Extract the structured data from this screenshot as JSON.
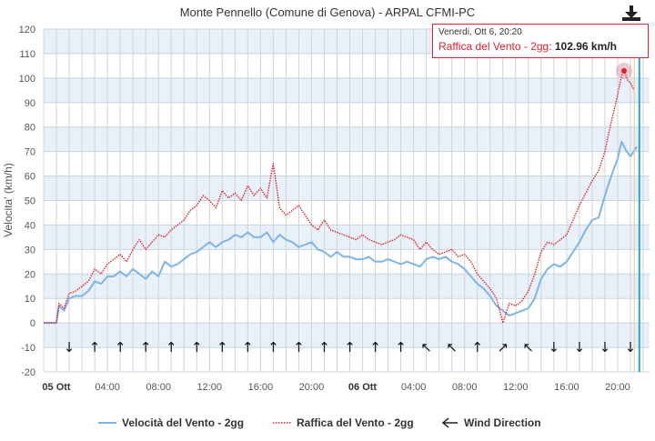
{
  "chart_data": {
    "type": "line",
    "title": "Monte Pennello (Comune di Genova) - ARPAL CFMI-PC",
    "ylabel": "Velocita' (km/h)",
    "xlabel": "",
    "ylim": [
      -20,
      120
    ],
    "yticks": [
      -20,
      -10,
      0,
      10,
      20,
      30,
      40,
      50,
      60,
      70,
      80,
      90,
      100,
      110,
      120
    ],
    "xrange_hours": [
      -1,
      46.5
    ],
    "xtick_labels": [
      {
        "t": 0,
        "label": "05 Ott",
        "bold": true
      },
      {
        "t": 4,
        "label": "04:00"
      },
      {
        "t": 8,
        "label": "08:00"
      },
      {
        "t": 12,
        "label": "12:00"
      },
      {
        "t": 16,
        "label": "16:00"
      },
      {
        "t": 20,
        "label": "20:00"
      },
      {
        "t": 24,
        "label": "06 Ott",
        "bold": true
      },
      {
        "t": 28,
        "label": "04:00"
      },
      {
        "t": 32,
        "label": "08:00"
      },
      {
        "t": 36,
        "label": "12:00"
      },
      {
        "t": 40,
        "label": "16:00"
      },
      {
        "t": 44,
        "label": "20:00"
      }
    ],
    "grid": true,
    "legend_position": "bottom",
    "series": [
      {
        "name": "Velocità del Vento - 2gg",
        "color": "#7cb5ec",
        "style": "solid",
        "points": [
          [
            -1,
            0
          ],
          [
            0,
            0
          ],
          [
            0.2,
            7
          ],
          [
            0.6,
            5
          ],
          [
            1,
            10
          ],
          [
            1.5,
            11
          ],
          [
            2,
            11
          ],
          [
            2.5,
            13
          ],
          [
            3,
            17
          ],
          [
            3.5,
            16
          ],
          [
            4,
            19
          ],
          [
            4.5,
            19
          ],
          [
            5,
            21
          ],
          [
            5.5,
            19
          ],
          [
            6,
            22
          ],
          [
            6.5,
            20
          ],
          [
            7,
            18
          ],
          [
            7.5,
            21
          ],
          [
            8,
            19
          ],
          [
            8.5,
            25
          ],
          [
            9,
            23
          ],
          [
            9.5,
            24
          ],
          [
            10,
            26
          ],
          [
            10.5,
            28
          ],
          [
            11,
            29
          ],
          [
            11.5,
            31
          ],
          [
            12,
            33
          ],
          [
            12.5,
            31
          ],
          [
            13,
            33
          ],
          [
            13.5,
            34
          ],
          [
            14,
            36
          ],
          [
            14.5,
            35
          ],
          [
            15,
            37
          ],
          [
            15.5,
            35
          ],
          [
            16,
            35
          ],
          [
            16.5,
            37
          ],
          [
            17,
            33
          ],
          [
            17.5,
            36
          ],
          [
            18,
            34
          ],
          [
            18.5,
            33
          ],
          [
            19,
            31
          ],
          [
            19.5,
            32
          ],
          [
            20,
            33
          ],
          [
            20.5,
            30
          ],
          [
            21,
            29
          ],
          [
            21.5,
            27
          ],
          [
            22,
            29
          ],
          [
            22.5,
            27
          ],
          [
            23,
            27
          ],
          [
            23.5,
            26
          ],
          [
            24,
            26
          ],
          [
            24.5,
            27
          ],
          [
            25,
            25
          ],
          [
            25.5,
            25
          ],
          [
            26,
            26
          ],
          [
            26.5,
            25
          ],
          [
            27,
            24
          ],
          [
            27.5,
            25
          ],
          [
            28,
            24
          ],
          [
            28.5,
            23
          ],
          [
            29,
            26
          ],
          [
            29.5,
            27
          ],
          [
            30,
            26
          ],
          [
            30.5,
            27
          ],
          [
            31,
            25
          ],
          [
            31.5,
            24
          ],
          [
            32,
            22
          ],
          [
            32.5,
            19
          ],
          [
            33,
            16
          ],
          [
            33.5,
            14
          ],
          [
            34,
            11
          ],
          [
            34.5,
            7
          ],
          [
            35,
            5
          ],
          [
            35.5,
            3
          ],
          [
            36,
            4
          ],
          [
            36.5,
            5
          ],
          [
            37,
            6
          ],
          [
            37.5,
            10
          ],
          [
            38,
            18
          ],
          [
            38.5,
            22
          ],
          [
            39,
            24
          ],
          [
            39.5,
            23
          ],
          [
            40,
            25
          ],
          [
            40.5,
            29
          ],
          [
            41,
            33
          ],
          [
            41.5,
            38
          ],
          [
            42,
            42
          ],
          [
            42.5,
            43
          ],
          [
            43,
            52
          ],
          [
            43.5,
            60
          ],
          [
            44,
            67
          ],
          [
            44.3,
            74
          ],
          [
            44.7,
            70
          ],
          [
            45,
            68
          ],
          [
            45.5,
            72
          ]
        ]
      },
      {
        "name": "Raffica del Vento - 2gg",
        "color": "#e0202a",
        "style": "dotted",
        "points": [
          [
            -1,
            0
          ],
          [
            0,
            0
          ],
          [
            0.2,
            8
          ],
          [
            0.6,
            6
          ],
          [
            1,
            12
          ],
          [
            1.5,
            13
          ],
          [
            2,
            15
          ],
          [
            2.5,
            17
          ],
          [
            3,
            22
          ],
          [
            3.5,
            20
          ],
          [
            4,
            24
          ],
          [
            4.5,
            26
          ],
          [
            5,
            28
          ],
          [
            5.5,
            25
          ],
          [
            6,
            30
          ],
          [
            6.5,
            34
          ],
          [
            7,
            30
          ],
          [
            7.5,
            33
          ],
          [
            8,
            36
          ],
          [
            8.5,
            35
          ],
          [
            9,
            38
          ],
          [
            9.5,
            40
          ],
          [
            10,
            42
          ],
          [
            10.5,
            46
          ],
          [
            11,
            48
          ],
          [
            11.5,
            52
          ],
          [
            12,
            50
          ],
          [
            12.5,
            47
          ],
          [
            13,
            54
          ],
          [
            13.5,
            51
          ],
          [
            14,
            53
          ],
          [
            14.5,
            50
          ],
          [
            15,
            56
          ],
          [
            15.5,
            52
          ],
          [
            16,
            55
          ],
          [
            16.5,
            51
          ],
          [
            17,
            65
          ],
          [
            17.5,
            47
          ],
          [
            18,
            44
          ],
          [
            18.5,
            46
          ],
          [
            19,
            48
          ],
          [
            19.5,
            44
          ],
          [
            20,
            40
          ],
          [
            20.5,
            38
          ],
          [
            21,
            42
          ],
          [
            21.5,
            38
          ],
          [
            22,
            37
          ],
          [
            22.5,
            36
          ],
          [
            23,
            35
          ],
          [
            23.5,
            34
          ],
          [
            24,
            36
          ],
          [
            24.5,
            34
          ],
          [
            25,
            33
          ],
          [
            25.5,
            32
          ],
          [
            26,
            33
          ],
          [
            26.5,
            34
          ],
          [
            27,
            36
          ],
          [
            27.5,
            35
          ],
          [
            28,
            34
          ],
          [
            28.5,
            30
          ],
          [
            29,
            33
          ],
          [
            29.5,
            30
          ],
          [
            30,
            28
          ],
          [
            30.5,
            29
          ],
          [
            31,
            30
          ],
          [
            31.5,
            27
          ],
          [
            32,
            28
          ],
          [
            32.5,
            25
          ],
          [
            33,
            20
          ],
          [
            33.5,
            17
          ],
          [
            34,
            14
          ],
          [
            34.5,
            10
          ],
          [
            35,
            0
          ],
          [
            35.5,
            8
          ],
          [
            36,
            7
          ],
          [
            36.5,
            9
          ],
          [
            37,
            13
          ],
          [
            37.5,
            20
          ],
          [
            38,
            29
          ],
          [
            38.5,
            33
          ],
          [
            39,
            32
          ],
          [
            39.5,
            34
          ],
          [
            40,
            36
          ],
          [
            40.5,
            42
          ],
          [
            41,
            48
          ],
          [
            41.5,
            53
          ],
          [
            42,
            58
          ],
          [
            42.5,
            62
          ],
          [
            43,
            70
          ],
          [
            43.5,
            82
          ],
          [
            44,
            93
          ],
          [
            44.3,
            101
          ],
          [
            44.5,
            103
          ],
          [
            44.8,
            99
          ],
          [
            45,
            98
          ],
          [
            45.3,
            95
          ]
        ]
      }
    ],
    "wind_direction": {
      "name": "Wind Direction",
      "y": -10,
      "glyphs": [
        {
          "t": 1,
          "g": "↓"
        },
        {
          "t": 3,
          "g": "↑"
        },
        {
          "t": 5,
          "g": "↑"
        },
        {
          "t": 7,
          "g": "↑"
        },
        {
          "t": 9,
          "g": "↑"
        },
        {
          "t": 11,
          "g": "↑"
        },
        {
          "t": 13,
          "g": "↑"
        },
        {
          "t": 15,
          "g": "↑"
        },
        {
          "t": 17,
          "g": "↑"
        },
        {
          "t": 19,
          "g": "↑"
        },
        {
          "t": 21,
          "g": "↑"
        },
        {
          "t": 23,
          "g": "↑"
        },
        {
          "t": 25,
          "g": "↑"
        },
        {
          "t": 27,
          "g": "↑"
        },
        {
          "t": 29,
          "g": "↖"
        },
        {
          "t": 31,
          "g": "↖"
        },
        {
          "t": 33,
          "g": "↑"
        },
        {
          "t": 35,
          "g": "↗"
        },
        {
          "t": 37,
          "g": "↖"
        },
        {
          "t": 39,
          "g": "↓"
        },
        {
          "t": 41,
          "g": "↓"
        },
        {
          "t": 43,
          "g": "↓"
        },
        {
          "t": 45,
          "g": "↓"
        }
      ]
    },
    "highlight_point": {
      "t": 44.5,
      "value": 102.96
    }
  },
  "tooltip": {
    "date": "Venerdi, Ott 6, 20:20",
    "series_label": "Raffica del Vento - 2gg",
    "value": "102.96 km/h"
  },
  "legend": {
    "items": [
      {
        "label": "Velocità del Vento - 2gg",
        "symbol": "line-solid",
        "color": "#7cb5ec"
      },
      {
        "label": "Raffica del Vento - 2gg",
        "symbol": "line-dotted",
        "color": "#e0202a"
      },
      {
        "label": "Wind Direction",
        "symbol": "arrow-left-icon",
        "color": "#111111"
      }
    ]
  },
  "export": {
    "icon": "download-icon"
  }
}
